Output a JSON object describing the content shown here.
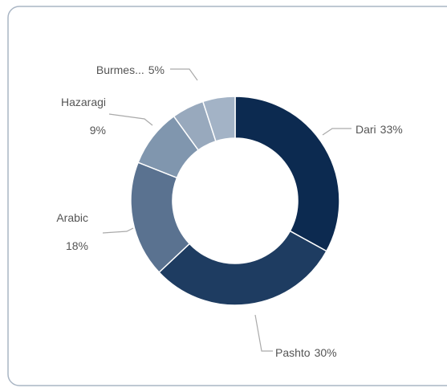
{
  "chart_data": {
    "type": "donut",
    "categories": [
      "Dari",
      "Pashto",
      "Arabic",
      "Hazaragi",
      "Burmes...",
      null
    ],
    "values": [
      33,
      30,
      18,
      9,
      5,
      5
    ],
    "value_labels": [
      "33%",
      "30%",
      "18%",
      "9%",
      "5%",
      null
    ],
    "colors": [
      "#0c2a50",
      "#1e3c61",
      "#5a7290",
      "#8096ae",
      "#98a9bd",
      "#a3b3c6"
    ]
  }
}
